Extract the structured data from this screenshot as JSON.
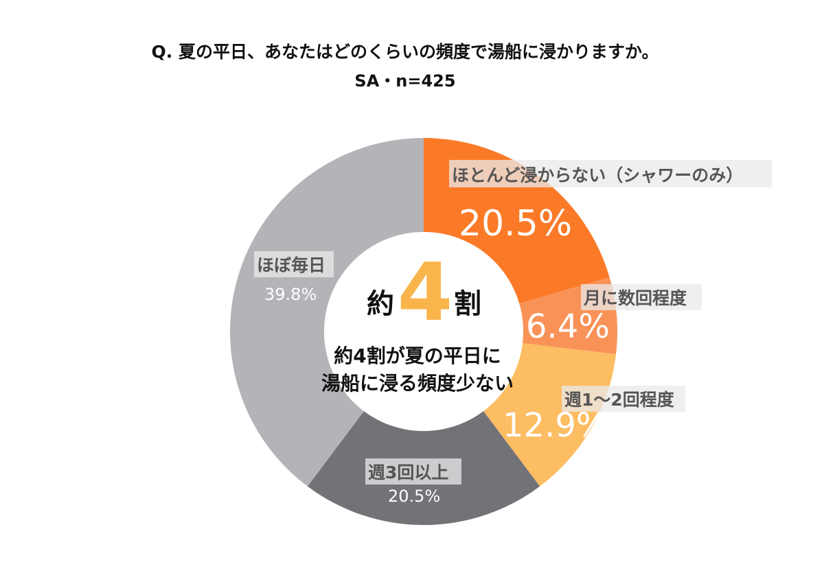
{
  "header": {
    "question": "Q. 夏の平日、あなたはどのくらいの頻度で湯船に浸かりますか。",
    "sample": "SA・n=425"
  },
  "center": {
    "left_char": "約",
    "big_number": "4",
    "right_char": "割",
    "line1": "約4割が夏の平日に",
    "line2": "湯船に浸る頻度少ない"
  },
  "chart_data": {
    "type": "pie",
    "donut": true,
    "labels": [
      "ほとんど浸からない（シャワーのみ）",
      "月に数回程度",
      "週1～2回程度",
      "週3回以上",
      "ほぼ毎日"
    ],
    "values": [
      20.5,
      6.4,
      12.9,
      20.5,
      39.8
    ],
    "value_labels": [
      "20.5%",
      "6.4%",
      "12.9%",
      "20.5%",
      "39.8%"
    ],
    "colors": [
      "#fb7a28",
      "#f99257",
      "#fdbd63",
      "#737277",
      "#b4b3b8"
    ]
  }
}
